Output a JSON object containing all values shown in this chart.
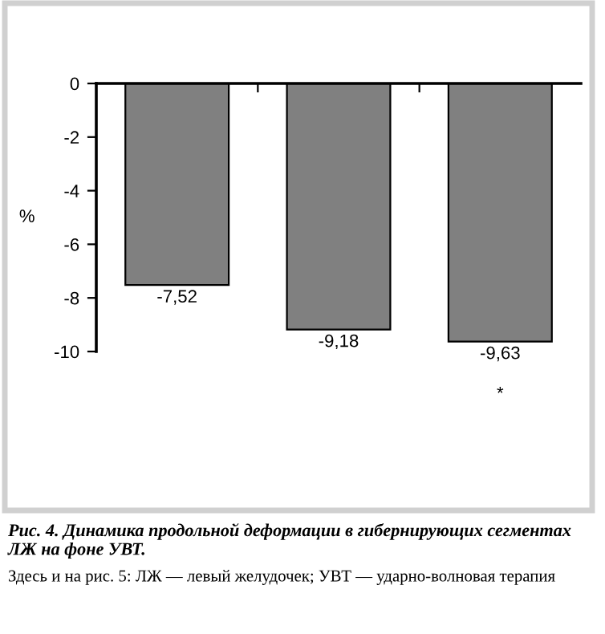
{
  "chart_data": {
    "type": "bar",
    "title": "Рис. 4. Динамика продольной деформации в гибернирующих сегментах ЛЖ на фоне УВТ.",
    "ylabel": "%",
    "categories": [
      null,
      null,
      null
    ],
    "values": [
      -7.52,
      -9.18,
      -9.63
    ],
    "color": "#808080",
    "value_labels": [
      "-7,52",
      "-9,18",
      "-9,63"
    ],
    "ylim": [
      -10,
      0
    ],
    "yticks": [
      {
        "value": -10,
        "label": "-10"
      },
      {
        "value": -8,
        "label": "-8"
      },
      {
        "value": -6,
        "label": "-6"
      },
      {
        "value": -4,
        "label": "-4"
      },
      {
        "value": -2,
        "label": "-2"
      },
      0
    ],
    "grid": false,
    "annotations": [
      {
        "text": "*",
        "y": -9.63
      },
      "Здесь и на рис. 5: ЛЖ — левый желудочек; УВТ — ударно-волновая терапия"
    ]
  }
}
